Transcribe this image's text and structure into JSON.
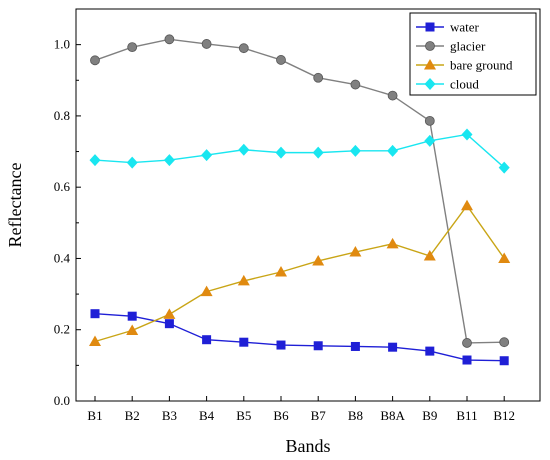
{
  "chart_data": {
    "type": "line",
    "xlabel": "Bands",
    "ylabel": "Reflectance",
    "categories": [
      "B1",
      "B2",
      "B3",
      "B4",
      "B5",
      "B6",
      "B7",
      "B8",
      "B8A",
      "B9",
      "B11",
      "B12"
    ],
    "ylim": [
      0.0,
      1.1
    ],
    "yticks": [
      "0.0",
      "0.2",
      "0.4",
      "0.6",
      "0.8",
      "1.0"
    ],
    "grid": false,
    "legend_position": "top-right",
    "series": [
      {
        "name": "water",
        "color": "#1f1fd6",
        "marker": "square",
        "values": [
          0.245,
          0.238,
          0.217,
          0.172,
          0.165,
          0.157,
          0.155,
          0.153,
          0.151,
          0.14,
          0.115,
          0.113
        ]
      },
      {
        "name": "glacier",
        "color": "#808080",
        "marker": "circle",
        "values": [
          0.956,
          0.993,
          1.015,
          1.002,
          0.99,
          0.957,
          0.907,
          0.888,
          0.857,
          0.786,
          0.163,
          0.165
        ]
      },
      {
        "name": "bare ground",
        "color": "#e08a10",
        "line_color": "#c9a516",
        "marker": "triangle",
        "values": [
          0.167,
          0.198,
          0.243,
          0.307,
          0.337,
          0.362,
          0.393,
          0.418,
          0.441,
          0.407,
          0.548,
          0.4
        ]
      },
      {
        "name": "cloud",
        "color": "#19e6f0",
        "marker": "diamond",
        "values": [
          0.676,
          0.669,
          0.676,
          0.69,
          0.705,
          0.697,
          0.697,
          0.702,
          0.702,
          0.73,
          0.748,
          0.655
        ]
      }
    ]
  }
}
